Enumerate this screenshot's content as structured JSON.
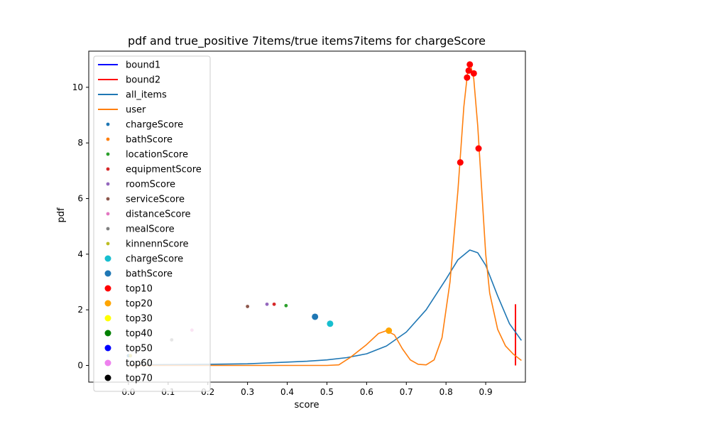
{
  "chart_data": {
    "type": "line",
    "title": "pdf and true_positive 7items/true items7items for chargeScore",
    "xlabel": "score",
    "ylabel": "pdf",
    "xlim": [
      -0.1,
      1.0
    ],
    "ylim": [
      -0.6,
      11.3
    ],
    "xticks": [
      0.0,
      0.1,
      0.2,
      0.3,
      0.4,
      0.5,
      0.6,
      0.7,
      0.8,
      0.9
    ],
    "xtick_labels": [
      "0.0",
      "0.1",
      "0.2",
      "0.3",
      "0.4",
      "0.5",
      "0.6",
      "0.7",
      "0.8",
      "0.9"
    ],
    "yticks": [
      0,
      2,
      4,
      6,
      8,
      10
    ],
    "ytick_labels": [
      "0",
      "2",
      "4",
      "6",
      "8",
      "10"
    ],
    "legend_position": "upper-left",
    "legend": [
      {
        "label": "bound1",
        "kind": "line",
        "color": "#0000ff"
      },
      {
        "label": "bound2",
        "kind": "line",
        "color": "#ff0000"
      },
      {
        "label": "all_items",
        "kind": "line",
        "color": "#1f77b4"
      },
      {
        "label": "user",
        "kind": "line",
        "color": "#ff7f0e"
      },
      {
        "label": "chargeScore",
        "kind": "small-dot",
        "color": "#1f77b4"
      },
      {
        "label": "bathScore",
        "kind": "small-dot",
        "color": "#ff7f0e"
      },
      {
        "label": "locationScore",
        "kind": "small-dot",
        "color": "#2ca02c"
      },
      {
        "label": "equipmentScore",
        "kind": "small-dot",
        "color": "#d62728"
      },
      {
        "label": "roomScore",
        "kind": "small-dot",
        "color": "#9467bd"
      },
      {
        "label": "serviceScore",
        "kind": "small-dot",
        "color": "#8c564b"
      },
      {
        "label": "distanceScore",
        "kind": "small-dot",
        "color": "#e377c2"
      },
      {
        "label": "mealScore",
        "kind": "small-dot",
        "color": "#7f7f7f"
      },
      {
        "label": "kinnennScore",
        "kind": "small-dot",
        "color": "#bcbd22"
      },
      {
        "label": "chargeScore",
        "kind": "big-dot",
        "color": "#17becf"
      },
      {
        "label": "bathScore",
        "kind": "big-dot",
        "color": "#1f77b4"
      },
      {
        "label": "top10",
        "kind": "big-dot",
        "color": "#ff0000"
      },
      {
        "label": "top20",
        "kind": "big-dot",
        "color": "#ffa500"
      },
      {
        "label": "top30",
        "kind": "big-dot",
        "color": "#ffff00"
      },
      {
        "label": "top40",
        "kind": "big-dot",
        "color": "#008000"
      },
      {
        "label": "top50",
        "kind": "big-dot",
        "color": "#0000ff"
      },
      {
        "label": "top60",
        "kind": "big-dot",
        "color": "#ee82ee"
      },
      {
        "label": "top70",
        "kind": "big-dot",
        "color": "#000000"
      }
    ],
    "series": [
      {
        "name": "all_items",
        "color": "#1f77b4",
        "points": [
          [
            0.0,
            0.02
          ],
          [
            0.1,
            0.03
          ],
          [
            0.2,
            0.04
          ],
          [
            0.3,
            0.06
          ],
          [
            0.35,
            0.09
          ],
          [
            0.4,
            0.12
          ],
          [
            0.45,
            0.15
          ],
          [
            0.5,
            0.2
          ],
          [
            0.55,
            0.28
          ],
          [
            0.6,
            0.42
          ],
          [
            0.65,
            0.7
          ],
          [
            0.7,
            1.2
          ],
          [
            0.75,
            2.0
          ],
          [
            0.8,
            3.1
          ],
          [
            0.83,
            3.8
          ],
          [
            0.86,
            4.15
          ],
          [
            0.88,
            4.05
          ],
          [
            0.9,
            3.6
          ],
          [
            0.93,
            2.5
          ],
          [
            0.96,
            1.5
          ],
          [
            0.99,
            0.9
          ]
        ]
      },
      {
        "name": "user",
        "color": "#ff7f0e",
        "points": [
          [
            0.0,
            0.0
          ],
          [
            0.3,
            0.0
          ],
          [
            0.5,
            0.0
          ],
          [
            0.53,
            0.02
          ],
          [
            0.56,
            0.3
          ],
          [
            0.6,
            0.75
          ],
          [
            0.63,
            1.15
          ],
          [
            0.65,
            1.25
          ],
          [
            0.67,
            1.1
          ],
          [
            0.69,
            0.6
          ],
          [
            0.71,
            0.2
          ],
          [
            0.73,
            0.04
          ],
          [
            0.75,
            0.02
          ],
          [
            0.77,
            0.2
          ],
          [
            0.79,
            1.0
          ],
          [
            0.81,
            3.0
          ],
          [
            0.83,
            6.3
          ],
          [
            0.845,
            9.3
          ],
          [
            0.855,
            10.6
          ],
          [
            0.862,
            10.8
          ],
          [
            0.87,
            10.3
          ],
          [
            0.88,
            8.6
          ],
          [
            0.89,
            6.3
          ],
          [
            0.9,
            4.0
          ],
          [
            0.91,
            2.6
          ],
          [
            0.93,
            1.3
          ],
          [
            0.95,
            0.7
          ],
          [
            0.97,
            0.4
          ],
          [
            0.99,
            0.18
          ]
        ]
      }
    ],
    "bound_lines": [
      {
        "name": "bound2",
        "color": "#ff0000",
        "x": 0.975,
        "y_from": 0.0,
        "y_to": 2.2
      }
    ],
    "small_dots": [
      {
        "name": "chargeScore",
        "color": "#1f77b4",
        "x": 0.0,
        "y": 0.35
      },
      {
        "name": "bathScore",
        "color": "#ff7f0e",
        "x": 0.005,
        "y": 0.35
      },
      {
        "name": "locationScore",
        "color": "#2ca02c",
        "x": 0.397,
        "y": 2.15
      },
      {
        "name": "equipmentScore",
        "color": "#d62728",
        "x": 0.367,
        "y": 2.2
      },
      {
        "name": "roomScore",
        "color": "#9467bd",
        "x": 0.349,
        "y": 2.2
      },
      {
        "name": "serviceScore",
        "color": "#8c564b",
        "x": 0.3,
        "y": 2.12
      },
      {
        "name": "distanceScore",
        "color": "#e377c2",
        "x": 0.16,
        "y": 1.27
      },
      {
        "name": "mealScore",
        "color": "#7f7f7f",
        "x": 0.109,
        "y": 0.92
      },
      {
        "name": "kinnennScore",
        "color": "#bcbd22",
        "x": 0.005,
        "y": 0.35
      }
    ],
    "big_dots": [
      {
        "name": "chargeScore",
        "color": "#17becf",
        "x": 0.508,
        "y": 1.5
      },
      {
        "name": "bathScore",
        "color": "#1f77b4",
        "x": 0.47,
        "y": 1.75
      },
      {
        "name": "top20",
        "color": "#ffa500",
        "x": 0.656,
        "y": 1.25
      },
      {
        "name": "top10",
        "color": "#ff0000",
        "x": 0.836,
        "y": 7.3
      },
      {
        "name": "top10",
        "color": "#ff0000",
        "x": 0.882,
        "y": 7.8
      },
      {
        "name": "top10",
        "color": "#ff0000",
        "x": 0.853,
        "y": 10.35
      },
      {
        "name": "top10",
        "color": "#ff0000",
        "x": 0.857,
        "y": 10.6
      },
      {
        "name": "top10",
        "color": "#ff0000",
        "x": 0.86,
        "y": 10.82
      },
      {
        "name": "top10",
        "color": "#ff0000",
        "x": 0.87,
        "y": 10.5
      }
    ]
  }
}
